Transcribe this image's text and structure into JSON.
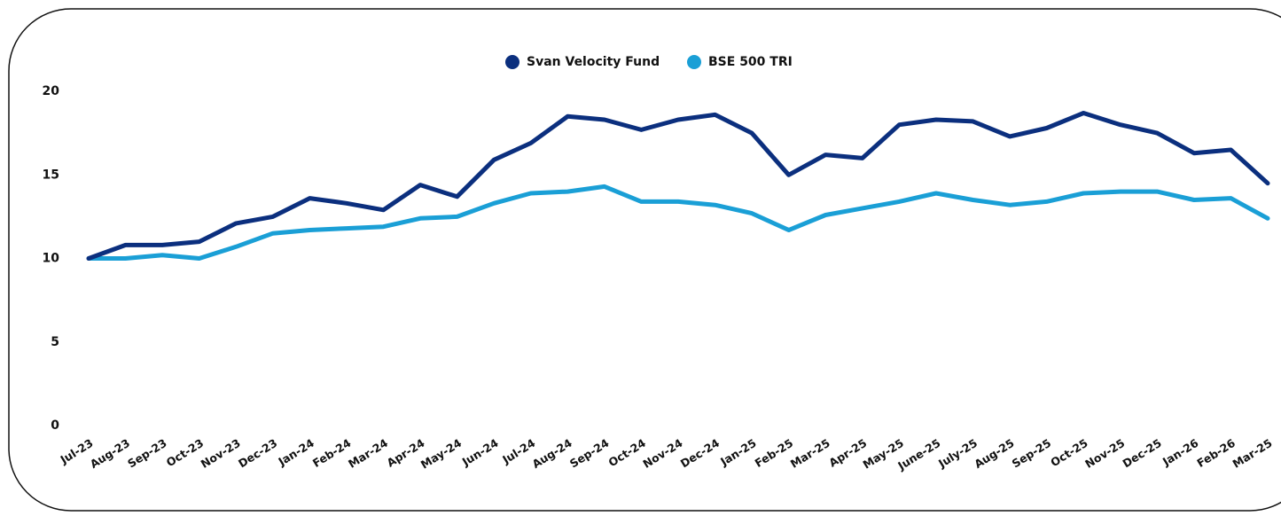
{
  "chart_data": {
    "type": "line",
    "categories": [
      "Jul-23",
      "Aug-23",
      "Sep-23",
      "Oct-23",
      "Nov-23",
      "Dec-23",
      "Jan-24",
      "Feb-24",
      "Mar-24",
      "Apr-24",
      "May-24",
      "Jun-24",
      "Jul-24",
      "Aug-24",
      "Sep-24",
      "Oct-24",
      "Nov-24",
      "Dec-24",
      "Jan-25",
      "Feb-25",
      "Mar-25",
      "Apr-25",
      "May-25",
      "June-25",
      "July-25",
      "Aug-25",
      "Sep-25",
      "Oct-25",
      "Nov-25",
      "Dec-25",
      "Jan-26",
      "Feb-26",
      "Mar-25"
    ],
    "series": [
      {
        "name": "Svan Velocity Fund",
        "color": "#0b2f7e",
        "values": [
          10,
          10.8,
          10.8,
          11.0,
          12.1,
          12.5,
          13.6,
          13.3,
          12.9,
          14.4,
          13.7,
          15.9,
          16.9,
          18.5,
          18.3,
          17.7,
          18.3,
          18.6,
          17.5,
          15.0,
          16.2,
          16.0,
          18.0,
          18.3,
          18.2,
          17.3,
          17.8,
          18.7,
          18.0,
          17.5,
          16.3,
          16.5,
          14.5
        ]
      },
      {
        "name": "BSE 500 TRI",
        "color": "#1a9fd6",
        "values": [
          10,
          10,
          10.2,
          10,
          10.7,
          11.5,
          11.7,
          11.8,
          11.9,
          12.4,
          12.5,
          13.3,
          13.9,
          14.0,
          14.3,
          13.4,
          13.4,
          13.2,
          12.7,
          11.7,
          12.6,
          13.0,
          13.4,
          13.9,
          13.5,
          13.2,
          13.4,
          13.9,
          14.0,
          14.0,
          13.5,
          13.6,
          12.4
        ]
      }
    ],
    "ylim": [
      0,
      20
    ],
    "yticks": [
      0,
      5,
      10,
      15,
      20
    ],
    "grid": false,
    "legend": "top"
  }
}
